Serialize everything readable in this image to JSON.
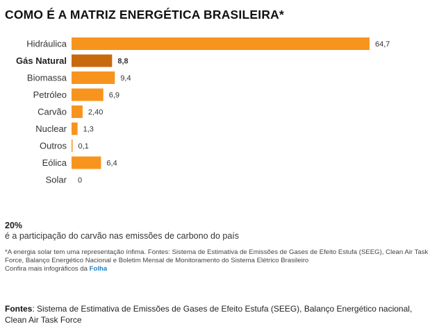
{
  "title": "COMO É A MATRIZ ENERGÉTICA BRASILEIRA*",
  "chart_data": {
    "type": "bar",
    "orientation": "horizontal",
    "categories": [
      "Hidráulica",
      "Gás Natural",
      "Biomassa",
      "Petróleo",
      "Carvão",
      "Nuclear",
      "Outros",
      "Eólica",
      "Solar"
    ],
    "values": [
      64.7,
      8.8,
      9.4,
      6.9,
      2.4,
      1.3,
      0.1,
      6.4,
      0
    ],
    "value_labels": [
      "64,7",
      "8,8",
      "9,4",
      "6,9",
      "2,40",
      "1,3",
      "0,1",
      "6,4",
      "0"
    ],
    "highlighted_category": "Gás Natural",
    "xlim": [
      0,
      64.7
    ],
    "grid": false,
    "legend": "none",
    "colors": {
      "bar": "#f7941d",
      "highlight": "#c8690e"
    }
  },
  "highlight": {
    "value": "20%",
    "text": "é a participação do carvão nas emissões de carbono do país"
  },
  "footnote": {
    "text": "*A energia solar tem uma representação ínfima. Fontes: Sistema de Estimativa de Emissões de Gases de Efeito Estufa (SEEG), Clean Air Task Force, Balanço Energético Nacional e Boletim Mensal de Monitoramento do Sistema Elétrico Brasileiro",
    "more_prefix": "Confira mais infográficos da",
    "more_link": "Folha"
  },
  "sources": {
    "label": "Fontes",
    "text": ": Sistema de Estimativa de Emissões de Gases de Efeito Estufa (SEEG), Balanço Energético nacional, Clean Air Task Force"
  }
}
